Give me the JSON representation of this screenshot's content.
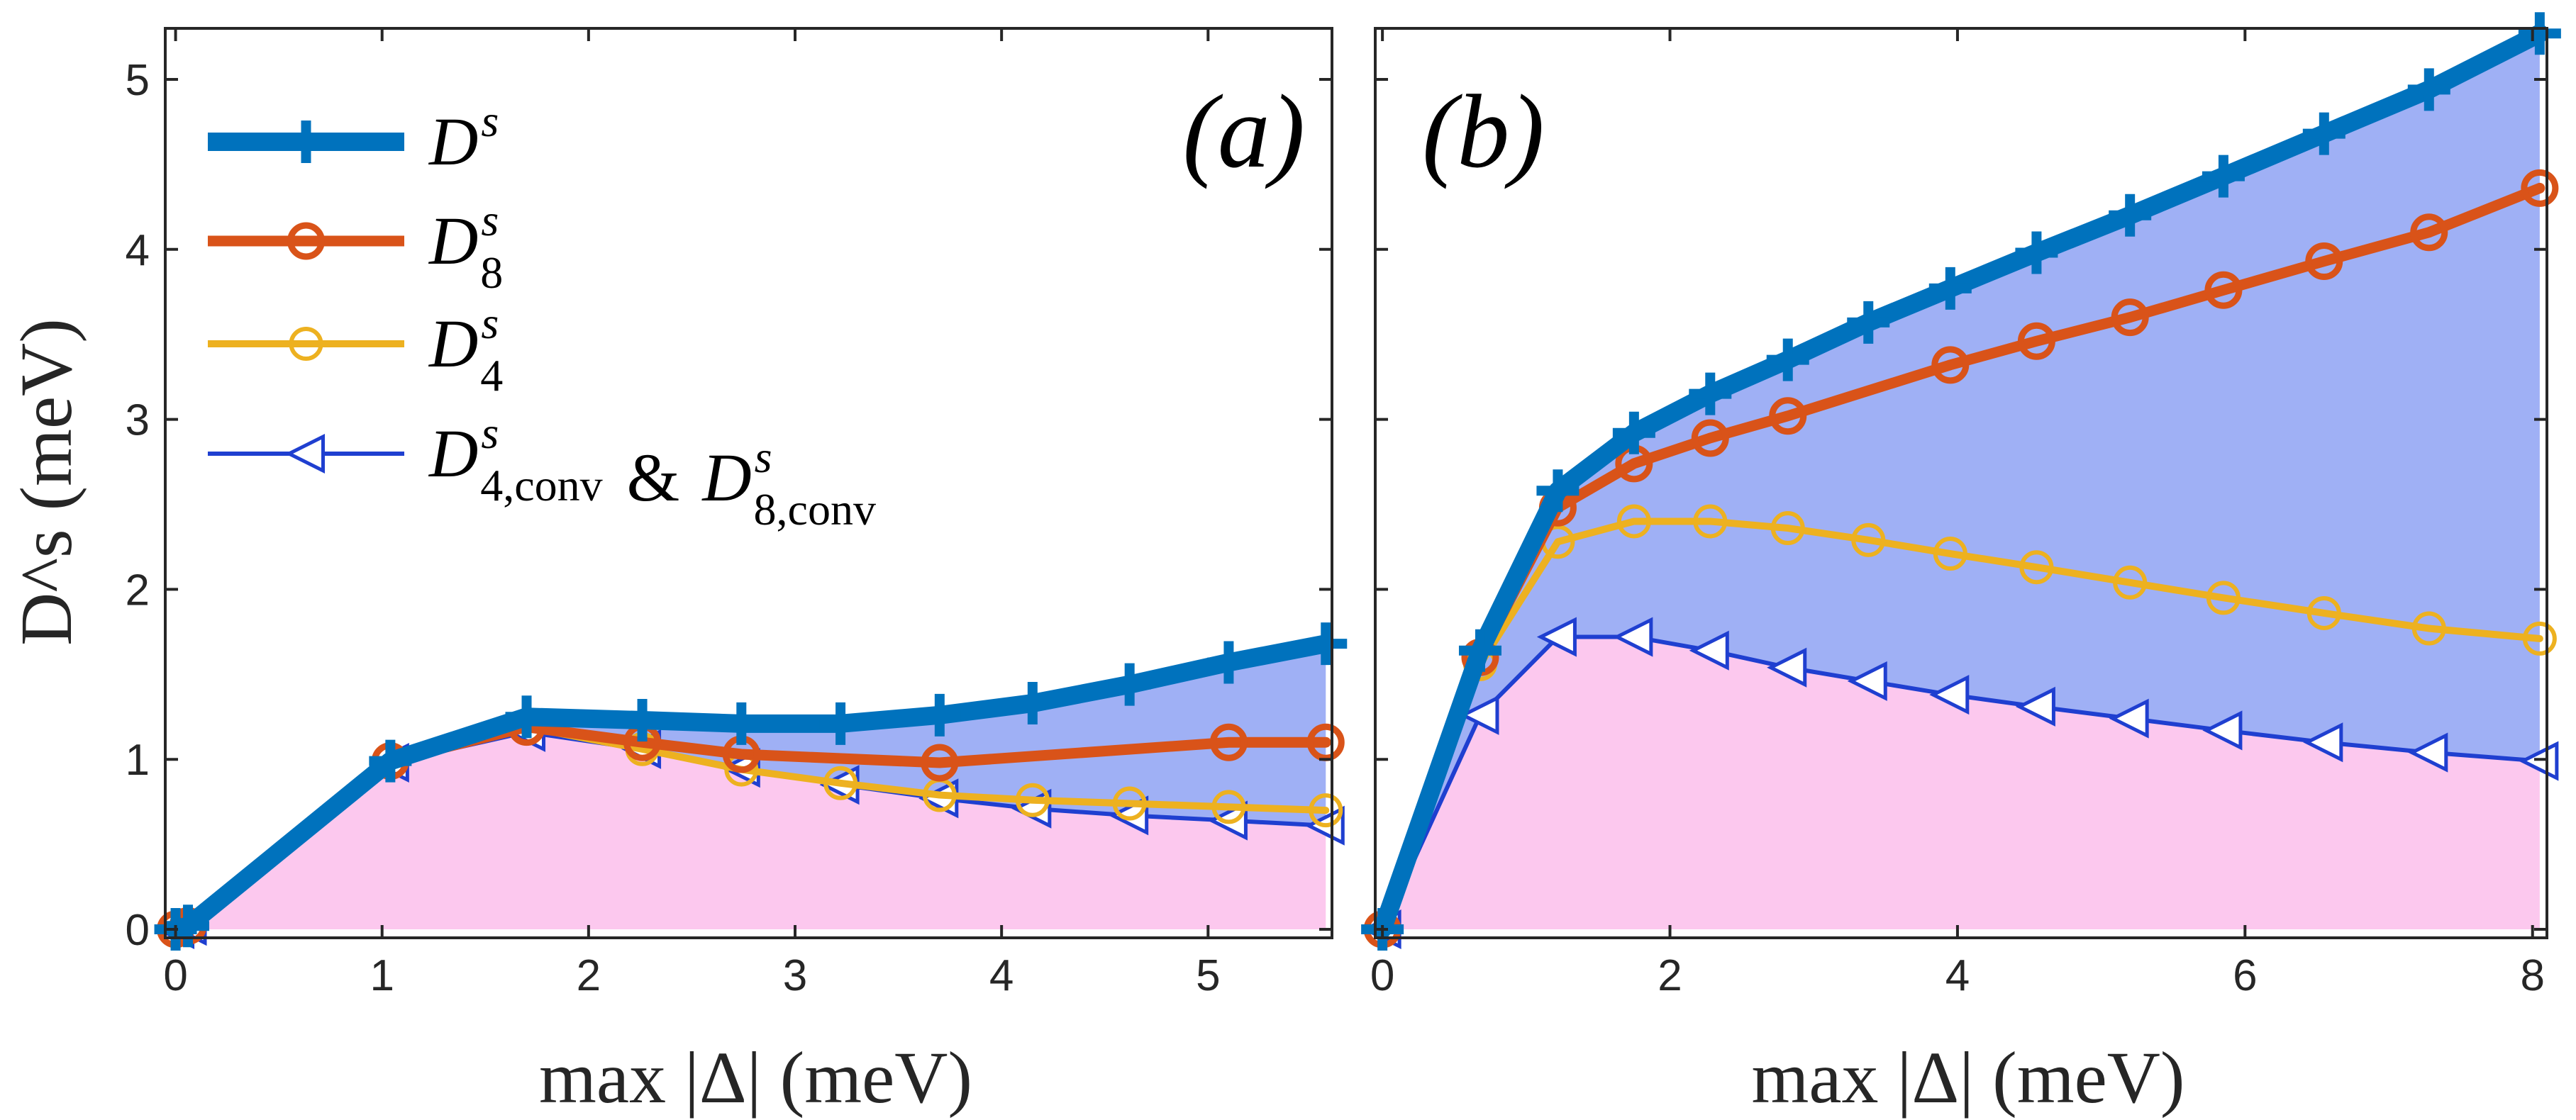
{
  "colors": {
    "ds": "#0072BD",
    "d8": "#D95319",
    "d4": "#EDB120",
    "conv": "#1F3FD0",
    "fill_upper": "#9FB0F5",
    "fill_lower": "#FCC8EE"
  },
  "legend": {
    "entries": [
      {
        "main": "D",
        "sup": "s",
        "sub": "",
        "series": "ds"
      },
      {
        "main": "D",
        "sup": "s",
        "sub": "8",
        "series": "d8"
      },
      {
        "main": "D",
        "sup": "s",
        "sub": "4",
        "series": "d4"
      },
      {
        "main": "D",
        "sup": "s",
        "sub": "4,conv",
        "joiner": " & ",
        "main2": "D",
        "sup2": "s",
        "sub2": "8,conv",
        "series": "conv"
      }
    ]
  },
  "chart_data": [
    {
      "type": "line",
      "panel_label": "(a)",
      "xlabel": "max |Δ| (meV)",
      "ylabel": "D^s (meV)",
      "xlim": [
        -0.05,
        5.6
      ],
      "ylim": [
        -0.05,
        5.3
      ],
      "xticks": [
        0,
        1,
        2,
        3,
        4,
        5
      ],
      "xtick_labels": [
        "0",
        "1",
        "2",
        "3",
        "4",
        "5"
      ],
      "yticks": [
        0,
        1,
        2,
        3,
        4,
        5
      ],
      "ytick_labels": [
        "0",
        "1",
        "2",
        "3",
        "4",
        "5"
      ],
      "series": [
        {
          "key": "ds",
          "name": "D^s",
          "marker": "plus",
          "x": [
            0,
            0.06,
            1.04,
            1.7,
            2.26,
            2.74,
            3.22,
            3.7,
            4.15,
            4.62,
            5.1,
            5.57
          ],
          "values": [
            0,
            0.02,
            0.99,
            1.25,
            1.23,
            1.21,
            1.21,
            1.26,
            1.33,
            1.44,
            1.57,
            1.68
          ]
        },
        {
          "key": "d8",
          "name": "D^s_8",
          "marker": "circle",
          "x": [
            0,
            0.06,
            1.04,
            1.7,
            2.26,
            2.74,
            3.7,
            5.1,
            5.57
          ],
          "values": [
            0,
            0.02,
            0.99,
            1.19,
            1.1,
            1.03,
            0.98,
            1.1,
            1.1
          ]
        },
        {
          "key": "d4",
          "name": "D^s_4",
          "marker": "circle",
          "x": [
            0,
            0.06,
            1.04,
            1.7,
            2.26,
            2.74,
            3.22,
            3.7,
            4.15,
            4.62,
            5.1,
            5.57
          ],
          "values": [
            0,
            0.02,
            0.99,
            1.19,
            1.06,
            0.94,
            0.86,
            0.79,
            0.76,
            0.74,
            0.72,
            0.7
          ]
        },
        {
          "key": "conv",
          "name": "D^s_4,conv & D^s_8,conv",
          "marker": "triangle-left",
          "x": [
            0,
            0.06,
            1.04,
            1.7,
            2.26,
            2.74,
            3.22,
            3.7,
            4.15,
            4.62,
            5.1,
            5.57
          ],
          "values": [
            0,
            0.02,
            0.98,
            1.16,
            1.06,
            0.95,
            0.85,
            0.77,
            0.71,
            0.67,
            0.64,
            0.61
          ]
        }
      ]
    },
    {
      "type": "line",
      "panel_label": "(b)",
      "xlabel": "max |Δ| (meV)",
      "ylabel": "",
      "xlim": [
        -0.05,
        8.1
      ],
      "ylim": [
        -0.05,
        5.3
      ],
      "xticks": [
        0,
        2,
        4,
        6,
        8
      ],
      "xtick_labels": [
        "0",
        "2",
        "4",
        "6",
        "8"
      ],
      "yticks": [
        0,
        1,
        2,
        3,
        4,
        5
      ],
      "ytick_labels": [
        "",
        "",
        "",
        "",
        "",
        ""
      ],
      "series": [
        {
          "key": "ds",
          "name": "D^s",
          "marker": "plus",
          "x": [
            0,
            0.68,
            1.22,
            1.75,
            2.28,
            2.82,
            3.38,
            3.95,
            4.55,
            5.2,
            5.85,
            6.55,
            7.28,
            8.05
          ],
          "values": [
            0,
            1.64,
            2.58,
            2.92,
            3.15,
            3.35,
            3.57,
            3.77,
            3.98,
            4.2,
            4.43,
            4.68,
            4.94,
            5.27
          ]
        },
        {
          "key": "d8",
          "name": "D^s_8",
          "marker": "circle",
          "x": [
            0,
            0.68,
            1.22,
            1.75,
            2.28,
            2.82,
            3.95,
            4.55,
            5.2,
            5.85,
            6.55,
            7.28,
            8.05
          ],
          "values": [
            0,
            1.6,
            2.48,
            2.74,
            2.89,
            3.02,
            3.32,
            3.46,
            3.6,
            3.76,
            3.93,
            4.1,
            4.36
          ]
        },
        {
          "key": "d4",
          "name": "D^s_4",
          "marker": "circle",
          "x": [
            0,
            0.68,
            1.22,
            1.75,
            2.28,
            2.82,
            3.38,
            3.95,
            4.55,
            5.2,
            5.85,
            6.55,
            7.28,
            8.05
          ],
          "values": [
            0,
            1.56,
            2.28,
            2.4,
            2.4,
            2.36,
            2.29,
            2.21,
            2.13,
            2.04,
            1.95,
            1.86,
            1.77,
            1.71
          ]
        },
        {
          "key": "conv",
          "name": "D^s_4,conv & D^s_8,conv",
          "marker": "triangle-left",
          "x": [
            0,
            0.68,
            1.22,
            1.75,
            2.28,
            2.82,
            3.38,
            3.95,
            4.55,
            5.2,
            5.85,
            6.55,
            7.28,
            8.05
          ],
          "values": [
            0,
            1.26,
            1.72,
            1.72,
            1.64,
            1.54,
            1.46,
            1.38,
            1.31,
            1.24,
            1.17,
            1.1,
            1.04,
            0.99
          ]
        }
      ]
    }
  ]
}
